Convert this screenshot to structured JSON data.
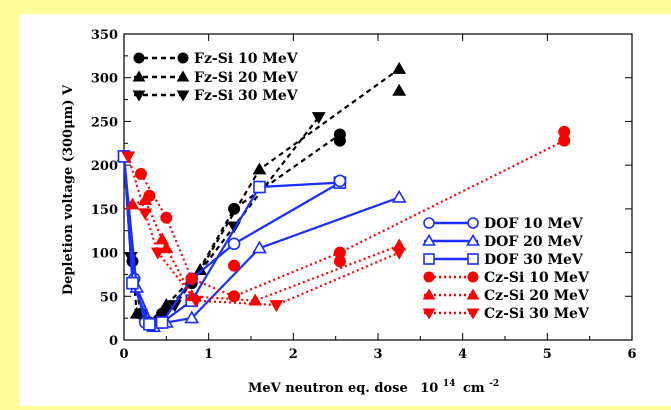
{
  "colors": {
    "background": "#ffff99",
    "plot_background": "#ffffff",
    "black": "#000000",
    "blue": "#1a2fff",
    "red": "#ff0000"
  },
  "chart_data": {
    "type": "line",
    "xlabel": "MeV neutron eq. dose",
    "xlabel_unit": "10",
    "xlabel_exp": "14",
    "xlabel_cm": "cm",
    "xlabel_cm_exp": "-2",
    "ylabel": "Depletion voltage (300μm) V",
    "xlim": [
      0,
      6
    ],
    "ylim": [
      0,
      350
    ],
    "xticks": [
      0,
      1,
      2,
      3,
      4,
      5,
      6
    ],
    "yticks": [
      0,
      50,
      100,
      150,
      200,
      250,
      300,
      350
    ],
    "grid": false,
    "series": [
      {
        "name": "Fz-Si 10 MeV",
        "color": "#000000",
        "dash": "5,4",
        "marker": "circle-filled",
        "x": [
          0.0,
          0.1,
          0.2,
          0.3,
          0.45,
          0.8,
          1.3,
          2.55
        ],
        "y": [
          210,
          90,
          30,
          20,
          30,
          65,
          150,
          235
        ]
      },
      {
        "name": "Fz-Si 20 MeV",
        "color": "#000000",
        "dash": "5,4",
        "marker": "triangle-up-filled",
        "x": [
          0.0,
          0.15,
          0.3,
          0.5,
          0.9,
          1.6,
          3.25
        ],
        "y": [
          210,
          30,
          20,
          40,
          80,
          195,
          310
        ]
      },
      {
        "name": "Fz-Si 30 MeV",
        "color": "#000000",
        "dash": "5,4",
        "marker": "triangle-down-filled",
        "x": [
          0.0,
          0.08,
          0.2,
          0.35,
          0.6,
          1.3,
          2.3
        ],
        "y": [
          210,
          95,
          30,
          20,
          40,
          130,
          255
        ]
      },
      {
        "name": "DOF 10 MeV",
        "color": "#1a2fff",
        "dash": "",
        "marker": "circle-open",
        "x": [
          0.0,
          0.12,
          0.25,
          0.45,
          0.8,
          1.3,
          2.55
        ],
        "y": [
          210,
          70,
          20,
          20,
          70,
          110,
          180
        ]
      },
      {
        "name": "DOF 20 MeV",
        "color": "#1a2fff",
        "dash": "",
        "marker": "triangle-up-open",
        "x": [
          0.0,
          0.15,
          0.35,
          0.5,
          0.8,
          1.6,
          3.25
        ],
        "y": [
          210,
          60,
          15,
          20,
          25,
          105,
          163
        ]
      },
      {
        "name": "DOF 30 MeV",
        "color": "#1a2fff",
        "dash": "",
        "marker": "square-open",
        "x": [
          0.0,
          0.1,
          0.3,
          0.45,
          0.8,
          1.6,
          2.55
        ],
        "y": [
          210,
          65,
          18,
          20,
          45,
          175,
          180
        ]
      },
      {
        "name": "Cz-Si 10 MeV",
        "color": "#ff0000",
        "dash": "2,3",
        "marker": "circle-filled",
        "x": [
          0.2,
          0.5,
          0.8,
          1.3,
          2.55,
          5.2
        ],
        "y": [
          190,
          140,
          70,
          50,
          100,
          228
        ]
      },
      {
        "name": "Cz-Si 20 MeV",
        "color": "#ff0000",
        "dash": "2,3",
        "marker": "triangle-up-filled",
        "x": [
          0.1,
          0.25,
          0.45,
          0.8,
          1.55,
          3.25
        ],
        "y": [
          155,
          160,
          115,
          50,
          45,
          108
        ]
      },
      {
        "name": "Cz-Si 30 MeV",
        "color": "#ff0000",
        "dash": "2,3",
        "marker": "triangle-down-filled",
        "x": [
          0.05,
          0.25,
          0.4,
          0.85,
          1.8,
          3.25
        ],
        "y": [
          210,
          145,
          100,
          45,
          40,
          100
        ]
      }
    ],
    "extra_points": [
      {
        "series": "Fz-Si 10 MeV",
        "x": 2.55,
        "y": 228
      },
      {
        "series": "Fz-Si 20 MeV",
        "x": 3.25,
        "y": 285
      },
      {
        "series": "Cz-Si 10 MeV",
        "x": 5.2,
        "y": 238
      },
      {
        "series": "Cz-Si 10 MeV",
        "x": 0.3,
        "y": 165
      },
      {
        "series": "Cz-Si 10 MeV",
        "x": 1.3,
        "y": 85
      },
      {
        "series": "Cz-Si 10 MeV",
        "x": 2.55,
        "y": 90
      },
      {
        "series": "Cz-Si 20 MeV",
        "x": 0.5,
        "y": 105
      },
      {
        "series": "DOF 10 MeV",
        "x": 2.55,
        "y": 182
      }
    ]
  }
}
